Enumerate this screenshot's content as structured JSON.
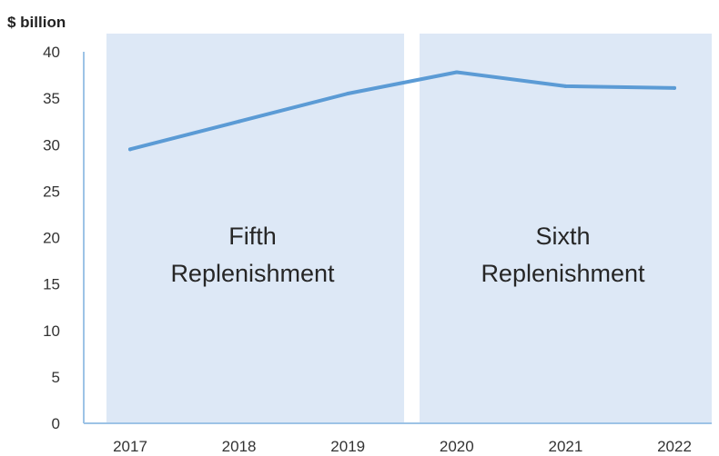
{
  "chart_data": {
    "type": "line",
    "ylabel": "$ billion",
    "xlabel": "",
    "categories": [
      "2017",
      "2018",
      "2019",
      "2020",
      "2021",
      "2022"
    ],
    "ylim": [
      0,
      40
    ],
    "yticks": [
      0,
      5,
      10,
      15,
      20,
      25,
      30,
      35,
      40
    ],
    "series": [
      {
        "x": [
          2017,
          2018,
          2019,
          2020,
          2021,
          2022
        ],
        "values": [
          29.5,
          32.5,
          35.5,
          37.8,
          36.3,
          36.1
        ],
        "color": "#5b9bd5"
      }
    ],
    "shaded_periods": [
      {
        "label_lines": [
          "Fifth",
          "Replenishment"
        ],
        "x_start": 2017,
        "x_end": 2019.5,
        "color": "#dde8f6"
      },
      {
        "label_lines": [
          "Sixth",
          "Replenishment"
        ],
        "x_start": 2019.5,
        "x_end": 2022,
        "color": "#dde8f6"
      }
    ],
    "grid": false,
    "legend": "none",
    "axis_color": "#9dc3e6"
  }
}
